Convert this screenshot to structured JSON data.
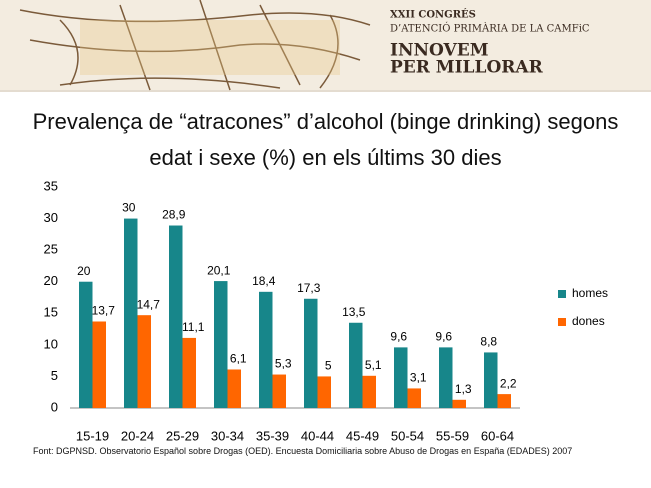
{
  "header": {
    "line1": "XXII CONGRÉS",
    "line2": "D’ATENCIÓ PRIMÀRIA DE LA CAMFiC",
    "line3": "INNOVEM",
    "line4": "PER MILLORAR"
  },
  "chart_data": {
    "type": "bar",
    "title": "Prevalença de “atracones” d’alcohol (binge drinking) segons edat i sexe (%) en els últims 30 dies",
    "source": "Font: DGPNSD. Observatorio Español sobre Drogas (OED). Encuesta Domiciliaria sobre Abuso de Drogas en España (EDADES) 2007",
    "categories": [
      "15-19",
      "20-24",
      "25-29",
      "30-34",
      "35-39",
      "40-44",
      "45-49",
      "50-54",
      "55-59",
      "60-64"
    ],
    "series": [
      {
        "name": "homes",
        "color": "#17868a",
        "values": [
          20,
          30,
          28.9,
          20.1,
          18.4,
          17.3,
          13.5,
          9.6,
          9.6,
          8.8
        ],
        "value_labels": [
          "20",
          "30",
          "28,9",
          "20,1",
          "18,4",
          "17,3",
          "13,5",
          "9,6",
          "9,6",
          "8,8"
        ]
      },
      {
        "name": "dones",
        "color": "#ff6600",
        "values": [
          13.7,
          14.7,
          11.1,
          6.1,
          5.3,
          5,
          5.1,
          3.1,
          1.3,
          2.2
        ],
        "value_labels": [
          "13,7",
          "14,7",
          "11,1",
          "6,1",
          "5,3",
          "5",
          "5,1",
          "3,1",
          "1,3",
          "2,2"
        ]
      }
    ],
    "ylim": [
      0,
      35
    ],
    "yticks": [
      0,
      5,
      10,
      15,
      20,
      25,
      30,
      35
    ],
    "grid": false,
    "legend": "right"
  }
}
